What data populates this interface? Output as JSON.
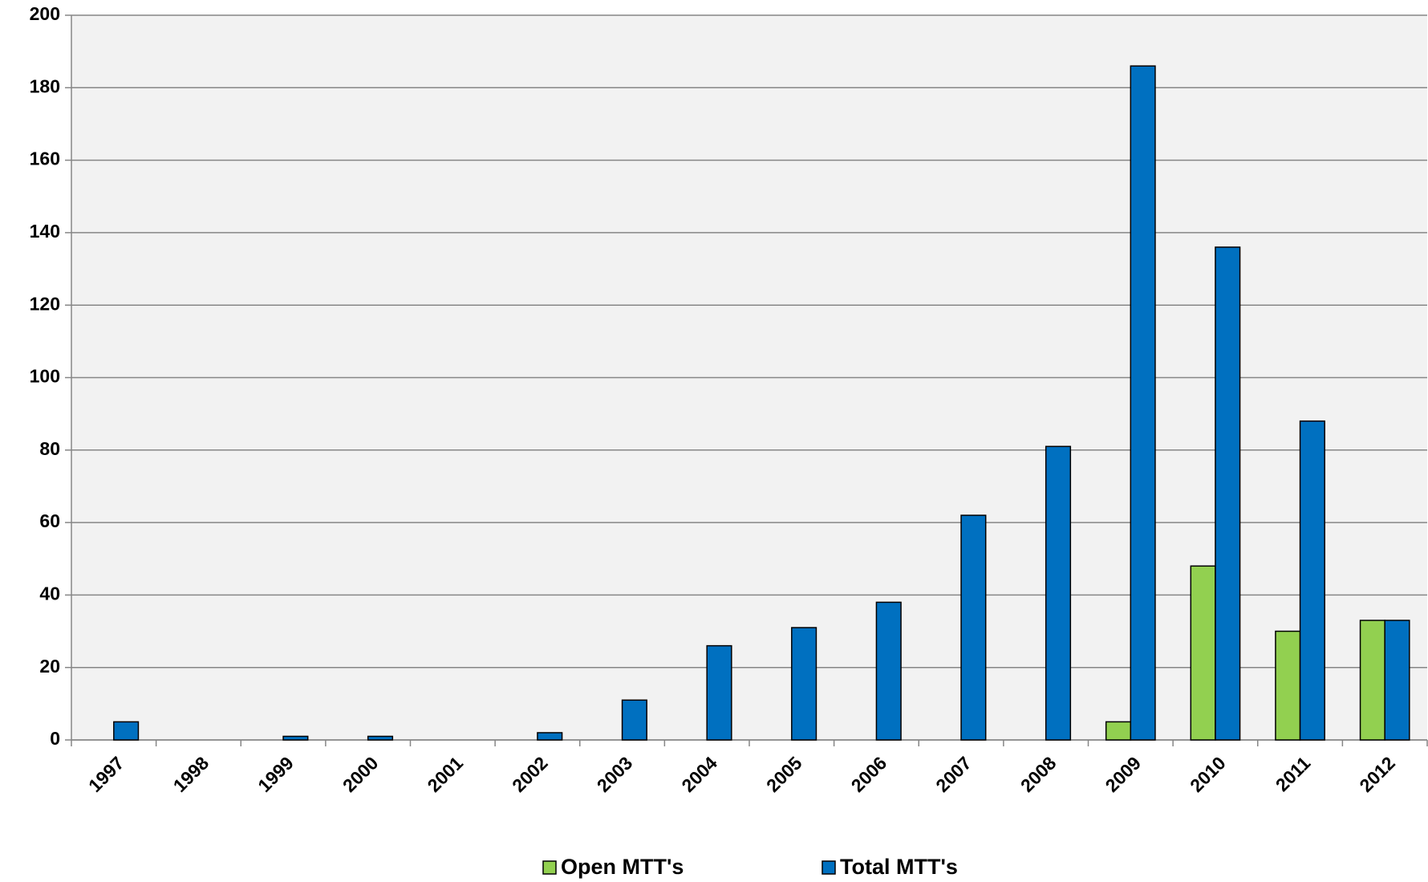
{
  "chart_data": {
    "type": "bar",
    "categories": [
      "1997",
      "1998",
      "1999",
      "2000",
      "2001",
      "2002",
      "2003",
      "2004",
      "2005",
      "2006",
      "2007",
      "2008",
      "2009",
      "2010",
      "2011",
      "2012"
    ],
    "series": [
      {
        "name": "Open MTT's",
        "color": "#92d050",
        "values": [
          0,
          0,
          0,
          0,
          0,
          0,
          0,
          0,
          0,
          0,
          0,
          0,
          5,
          48,
          30,
          33
        ]
      },
      {
        "name": "Total MTT's",
        "color": "#0070c0",
        "values": [
          5,
          0,
          1,
          1,
          0,
          2,
          11,
          26,
          31,
          38,
          62,
          81,
          186,
          136,
          88,
          33
        ]
      }
    ],
    "ylim": [
      0,
      200
    ],
    "yticks": [
      0,
      20,
      40,
      60,
      80,
      100,
      120,
      140,
      160,
      180,
      200
    ],
    "grid": true,
    "legend": "bottom"
  }
}
